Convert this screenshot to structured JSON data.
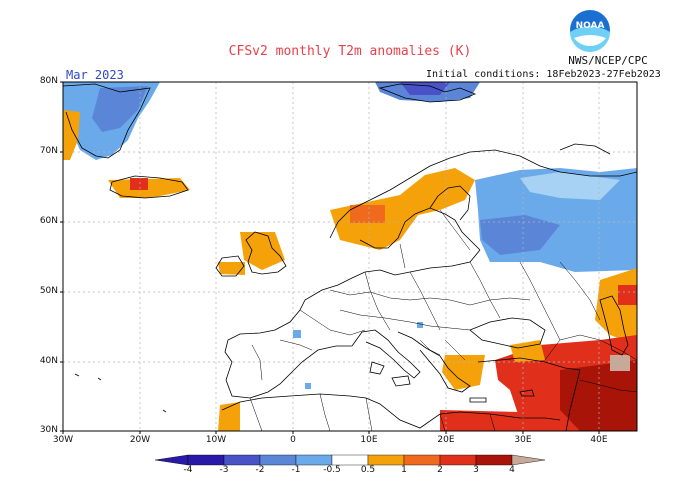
{
  "header": {
    "title": "CFSv2 monthly T2m anomalies (K)",
    "agency": "NWS/NCEP/CPC",
    "logo_text": "NOAA",
    "month": "Mar 2023",
    "initial_conditions": "Initial conditions: 18Feb2023-27Feb2023"
  },
  "axes": {
    "lat_labels": [
      "80N",
      "70N",
      "60N",
      "50N",
      "40N",
      "30N"
    ],
    "lon_labels": [
      "30W",
      "20W",
      "10W",
      "0",
      "10E",
      "20E",
      "30E",
      "40E"
    ]
  },
  "colorbar": {
    "labels": [
      "-4",
      "-3",
      "-2",
      "-1",
      "-0.5",
      "0.5",
      "1",
      "2",
      "3",
      "4"
    ],
    "colors": [
      "#2a18a8",
      "#4a52c8",
      "#5b86d8",
      "#6aaaea",
      "#a8d2f4",
      "#ffffff",
      "#f5a20a",
      "#f06a1e",
      "#e0301c",
      "#a81508",
      "#c8a898"
    ]
  },
  "map": {
    "region": "Europe",
    "lat_range": [
      30,
      80
    ],
    "lon_range": [
      -30,
      45
    ],
    "anomaly_colors": {
      "light_blue": "#a8d2f4",
      "mid_blue": "#6aaaea",
      "blue": "#5b86d8",
      "dark_blue": "#4a52c8",
      "orange": "#f5a20a",
      "red_orange": "#f06a1e",
      "red": "#e0301c",
      "dark_red": "#a81508",
      "pink": "#c8a898"
    }
  }
}
